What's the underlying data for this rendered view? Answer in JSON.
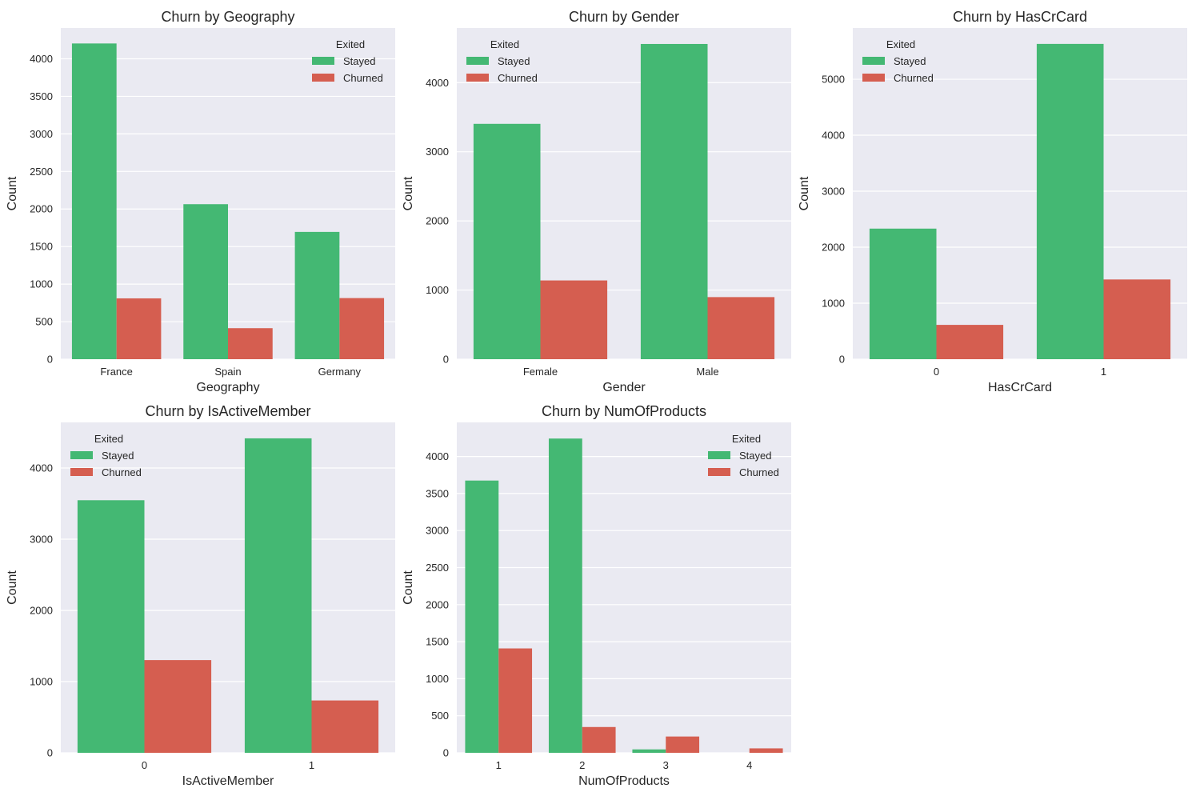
{
  "colors": {
    "stayed": "#44b873",
    "churned": "#d55e50",
    "panel_bg": "#eaeaf2",
    "grid": "#ffffff"
  },
  "chart_data": [
    {
      "type": "bar",
      "title": "Churn by Geography",
      "xlabel": "Geography",
      "ylabel": "Count",
      "categories": [
        "France",
        "Spain",
        "Germany"
      ],
      "series": [
        {
          "name": "Stayed",
          "values": [
            4204,
            2064,
            1695
          ]
        },
        {
          "name": "Churned",
          "values": [
            810,
            413,
            814
          ]
        }
      ],
      "ylim": [
        0,
        4410
      ],
      "yticks": [
        0,
        500,
        1000,
        1500,
        2000,
        2500,
        3000,
        3500,
        4000
      ],
      "legend": {
        "title": "Exited",
        "position": "top-right"
      }
    },
    {
      "type": "bar",
      "title": "Churn by Gender",
      "xlabel": "Gender",
      "ylabel": "Count",
      "categories": [
        "Female",
        "Male"
      ],
      "series": [
        {
          "name": "Stayed",
          "values": [
            3404,
            4559
          ]
        },
        {
          "name": "Churned",
          "values": [
            1139,
            898
          ]
        }
      ],
      "ylim": [
        0,
        4790
      ],
      "yticks": [
        0,
        1000,
        2000,
        3000,
        4000
      ],
      "legend": {
        "title": "Exited",
        "position": "top-left"
      }
    },
    {
      "type": "bar",
      "title": "Churn by HasCrCard",
      "xlabel": "HasCrCard",
      "ylabel": "Count",
      "categories": [
        "0",
        "1"
      ],
      "series": [
        {
          "name": "Stayed",
          "values": [
            2332,
            5631
          ]
        },
        {
          "name": "Churned",
          "values": [
            613,
            1424
          ]
        }
      ],
      "ylim": [
        0,
        5915
      ],
      "yticks": [
        0,
        1000,
        2000,
        3000,
        4000,
        5000
      ],
      "legend": {
        "title": "Exited",
        "position": "top-left"
      }
    },
    {
      "type": "bar",
      "title": "Churn by IsActiveMember",
      "xlabel": "IsActiveMember",
      "ylabel": "Count",
      "categories": [
        "0",
        "1"
      ],
      "series": [
        {
          "name": "Stayed",
          "values": [
            3547,
            4416
          ]
        },
        {
          "name": "Churned",
          "values": [
            1302,
            735
          ]
        }
      ],
      "ylim": [
        0,
        4640
      ],
      "yticks": [
        0,
        1000,
        2000,
        3000,
        4000
      ],
      "legend": {
        "title": "Exited",
        "position": "top-left"
      }
    },
    {
      "type": "bar",
      "title": "Churn by NumOfProducts",
      "xlabel": "NumOfProducts",
      "ylabel": "Count",
      "categories": [
        "1",
        "2",
        "3",
        "4"
      ],
      "series": [
        {
          "name": "Stayed",
          "values": [
            3675,
            4242,
            46,
            0
          ]
        },
        {
          "name": "Churned",
          "values": [
            1409,
            348,
            220,
            60
          ]
        }
      ],
      "ylim": [
        0,
        4460
      ],
      "yticks": [
        0,
        500,
        1000,
        1500,
        2000,
        2500,
        3000,
        3500,
        4000
      ],
      "legend": {
        "title": "Exited",
        "position": "top-right"
      }
    }
  ]
}
